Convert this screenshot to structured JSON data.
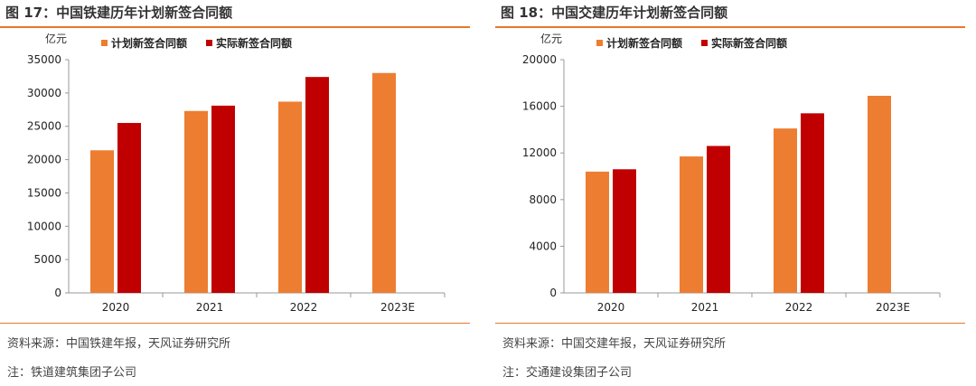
{
  "colors": {
    "planned": "#ed7d31",
    "actual": "#c00000",
    "accent": "#e8782a"
  },
  "chart_data": [
    {
      "type": "bar",
      "title": "图 17：中国铁建历年计划新签合同额",
      "ylabel": "亿元",
      "categories": [
        "2020",
        "2021",
        "2022",
        "2023E"
      ],
      "series": [
        {
          "name": "计划新签合同额",
          "values": [
            21400,
            27300,
            28700,
            33000
          ]
        },
        {
          "name": "实际新签合同额",
          "values": [
            25500,
            28100,
            32400,
            null
          ]
        }
      ],
      "ylim": [
        0,
        35000
      ],
      "yticks": [
        0,
        5000,
        10000,
        15000,
        20000,
        25000,
        30000,
        35000
      ],
      "legend": "top-center",
      "grid": false,
      "source": "资料来源：中国铁建年报，天风证券研究所",
      "note": "注：铁道建筑集团子公司"
    },
    {
      "type": "bar",
      "title": "图 18：中国交建历年计划新签合同额",
      "ylabel": "亿元",
      "categories": [
        "2020",
        "2021",
        "2022",
        "2023E"
      ],
      "series": [
        {
          "name": "计划新签合同额",
          "values": [
            10400,
            11700,
            14100,
            16900
          ]
        },
        {
          "name": "实际新签合同额",
          "values": [
            10600,
            12600,
            15400,
            null
          ]
        }
      ],
      "ylim": [
        0,
        20000
      ],
      "yticks": [
        0,
        4000,
        8000,
        12000,
        16000,
        20000
      ],
      "legend": "top-center",
      "grid": false,
      "source": "资料来源：中国交建年报，天风证券研究所",
      "note": "注：交通建设集团子公司"
    }
  ]
}
